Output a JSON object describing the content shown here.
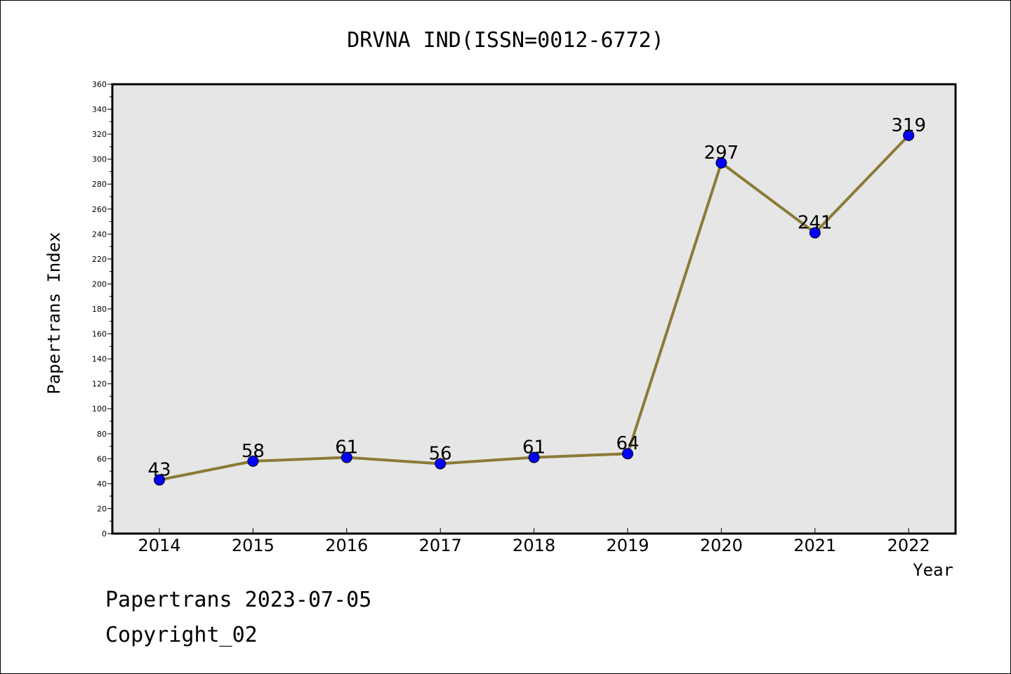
{
  "chart_data": {
    "type": "line",
    "title": "DRVNA IND(ISSN=0012-6772)",
    "xlabel": "Year",
    "ylabel": "Papertrans Index",
    "categories": [
      "2014",
      "2015",
      "2016",
      "2017",
      "2018",
      "2019",
      "2020",
      "2021",
      "2022"
    ],
    "values": [
      43,
      58,
      61,
      56,
      61,
      64,
      297,
      241,
      319
    ],
    "ylim": [
      0,
      360
    ],
    "ytick_step": 20,
    "grid": false,
    "legend": "none",
    "colors": {
      "line": "#8b7a38",
      "marker": "#0000ff",
      "plot_bg": "#e6e6e6"
    }
  },
  "footer": {
    "line1": "Papertrans 2023-07-05",
    "line2": "Copyright_02"
  }
}
